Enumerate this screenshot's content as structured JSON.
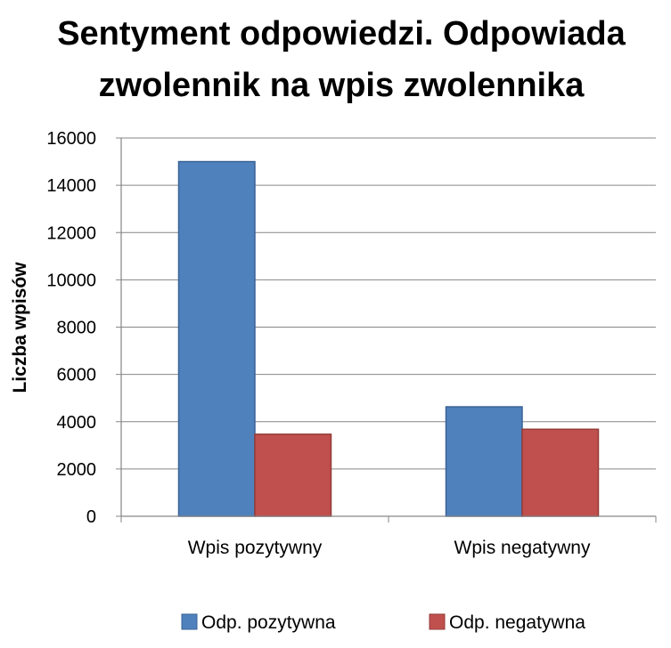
{
  "chart_data": {
    "type": "bar",
    "title_lines": [
      "Sentyment odpowiedzi. Odpowiada",
      "zwolennik na wpis zwolennika"
    ],
    "xlabel": "",
    "ylabel": "Liczba wpisów",
    "categories": [
      "Wpis pozytywny",
      "Wpis negatywny"
    ],
    "series": [
      {
        "name": "Odp. pozytywna",
        "values": [
          15000,
          4630
        ],
        "color": "#4f81bd",
        "stroke": "#3a6395"
      },
      {
        "name": "Odp. negatywna",
        "values": [
          3470,
          3680
        ],
        "color": "#c0504d",
        "stroke": "#953b39"
      }
    ],
    "ylim": [
      0,
      16000
    ],
    "yticks": [
      0,
      2000,
      4000,
      6000,
      8000,
      10000,
      12000,
      14000,
      16000
    ],
    "grid": true,
    "legend_position": "bottom"
  }
}
